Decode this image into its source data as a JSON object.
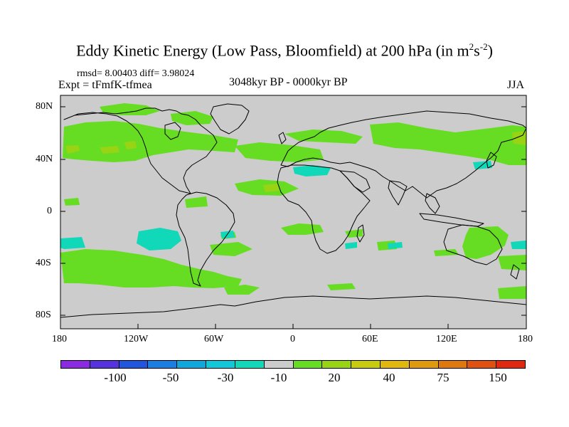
{
  "title": {
    "main": "Eddy Kinetic Energy (Low Pass, Bloomfield) at 200 hPa (in m",
    "sup1": "2",
    "mid": "s",
    "sup2": "-2",
    "end": ")"
  },
  "stats": "rmsd= 8.00403 diff= 3.98024",
  "experiment": "Expt = tFmfK-tfmea",
  "period": "3048kyr BP - 0000kyr BP",
  "season": "JJA",
  "map": {
    "ocean_color": "#cccccc",
    "coast_color": "#000000",
    "lat_ticks": [
      "80N",
      "40N",
      "0",
      "40S",
      "80S"
    ],
    "lon_ticks": [
      "180",
      "120W",
      "60W",
      "0",
      "60E",
      "120E",
      "180"
    ]
  },
  "colorbar": {
    "colors": [
      "#8a2be2",
      "#5533dd",
      "#2255dd",
      "#1a7fe0",
      "#10a8dc",
      "#12c8d8",
      "#10d8b8",
      "#cccccc",
      "#66dd22",
      "#99d414",
      "#c8cc10",
      "#e0b810",
      "#e09a10",
      "#e07810",
      "#e05010",
      "#e02810"
    ],
    "labels": [
      "-100",
      "-50",
      "-30",
      "-10",
      "20",
      "40",
      "75",
      "150"
    ]
  }
}
